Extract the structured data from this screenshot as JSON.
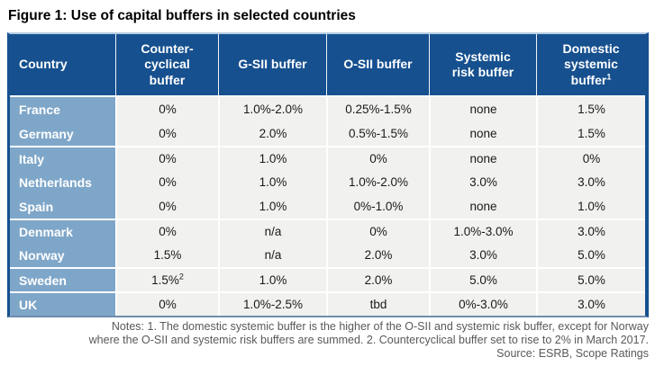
{
  "title": "Figure 1: Use of capital buffers in selected countries",
  "table": {
    "columns": [
      {
        "key": "country",
        "lines": [
          "Country"
        ]
      },
      {
        "key": "countercyclical-buffer",
        "lines": [
          "Counter-",
          "cyclical",
          "buffer"
        ]
      },
      {
        "key": "gsii-buffer",
        "lines": [
          "G-SII buffer"
        ]
      },
      {
        "key": "osii-buffer",
        "lines": [
          "O-SII buffer"
        ]
      },
      {
        "key": "systemic-risk-buffer",
        "lines": [
          "Systemic",
          "risk buffer"
        ]
      },
      {
        "key": "domestic-systemic-buffer",
        "lines": [
          "Domestic",
          "systemic",
          "buffer"
        ],
        "sup": "1"
      }
    ],
    "rows": [
      {
        "country": "France",
        "values": [
          "0%",
          "1.0%-2.0%",
          "0.25%-1.5%",
          "none",
          "1.5%"
        ],
        "group_start": false
      },
      {
        "country": "Germany",
        "values": [
          "0%",
          "2.0%",
          "0.5%-1.5%",
          "none",
          "1.5%"
        ],
        "group_start": false
      },
      {
        "country": "Italy",
        "values": [
          "0%",
          "1.0%",
          "0%",
          "none",
          "0%"
        ],
        "group_start": true
      },
      {
        "country": "Netherlands",
        "values": [
          "0%",
          "1.0%",
          "1.0%-2.0%",
          "3.0%",
          "3.0%"
        ],
        "group_start": false
      },
      {
        "country": "Spain",
        "values": [
          "0%",
          "1.0%",
          "0%-1.0%",
          "none",
          "1.0%"
        ],
        "group_start": false
      },
      {
        "country": "Denmark",
        "values": [
          "0%",
          "n/a",
          "0%",
          "1.0%-3.0%",
          "3.0%"
        ],
        "group_start": true
      },
      {
        "country": "Norway",
        "values": [
          "1.5%",
          "n/a",
          "2.0%",
          "3.0%",
          "5.0%"
        ],
        "group_start": false
      },
      {
        "country": "Sweden",
        "values": [
          {
            "text": "1.5%",
            "sup": "2"
          },
          "1.0%",
          "2.0%",
          "5.0%",
          "5.0%"
        ],
        "group_start": true
      },
      {
        "country": "UK",
        "values": [
          "0%",
          "1.0%-2.5%",
          "tbd",
          "0%-3.0%",
          "3.0%"
        ],
        "group_start": true
      }
    ]
  },
  "notes_lines": [
    "Notes: 1. The domestic systemic buffer is the higher of the O-SII and systemic risk buffer, except for Norway",
    "where the O-SII and systemic risk buffers are summed. 2. Countercyclical buffer set to rise to 2% in March 2017."
  ],
  "source": "Source: ESRB, Scope Ratings",
  "colors": {
    "header_bg": "#16508F",
    "country_column_bg": "#7EA6C9",
    "cell_bg": "#F1F1EF",
    "top_rule": "#B7CCE2",
    "outer_border": "#16508F",
    "notes_text": "#58595B",
    "title_text": "#000000"
  }
}
